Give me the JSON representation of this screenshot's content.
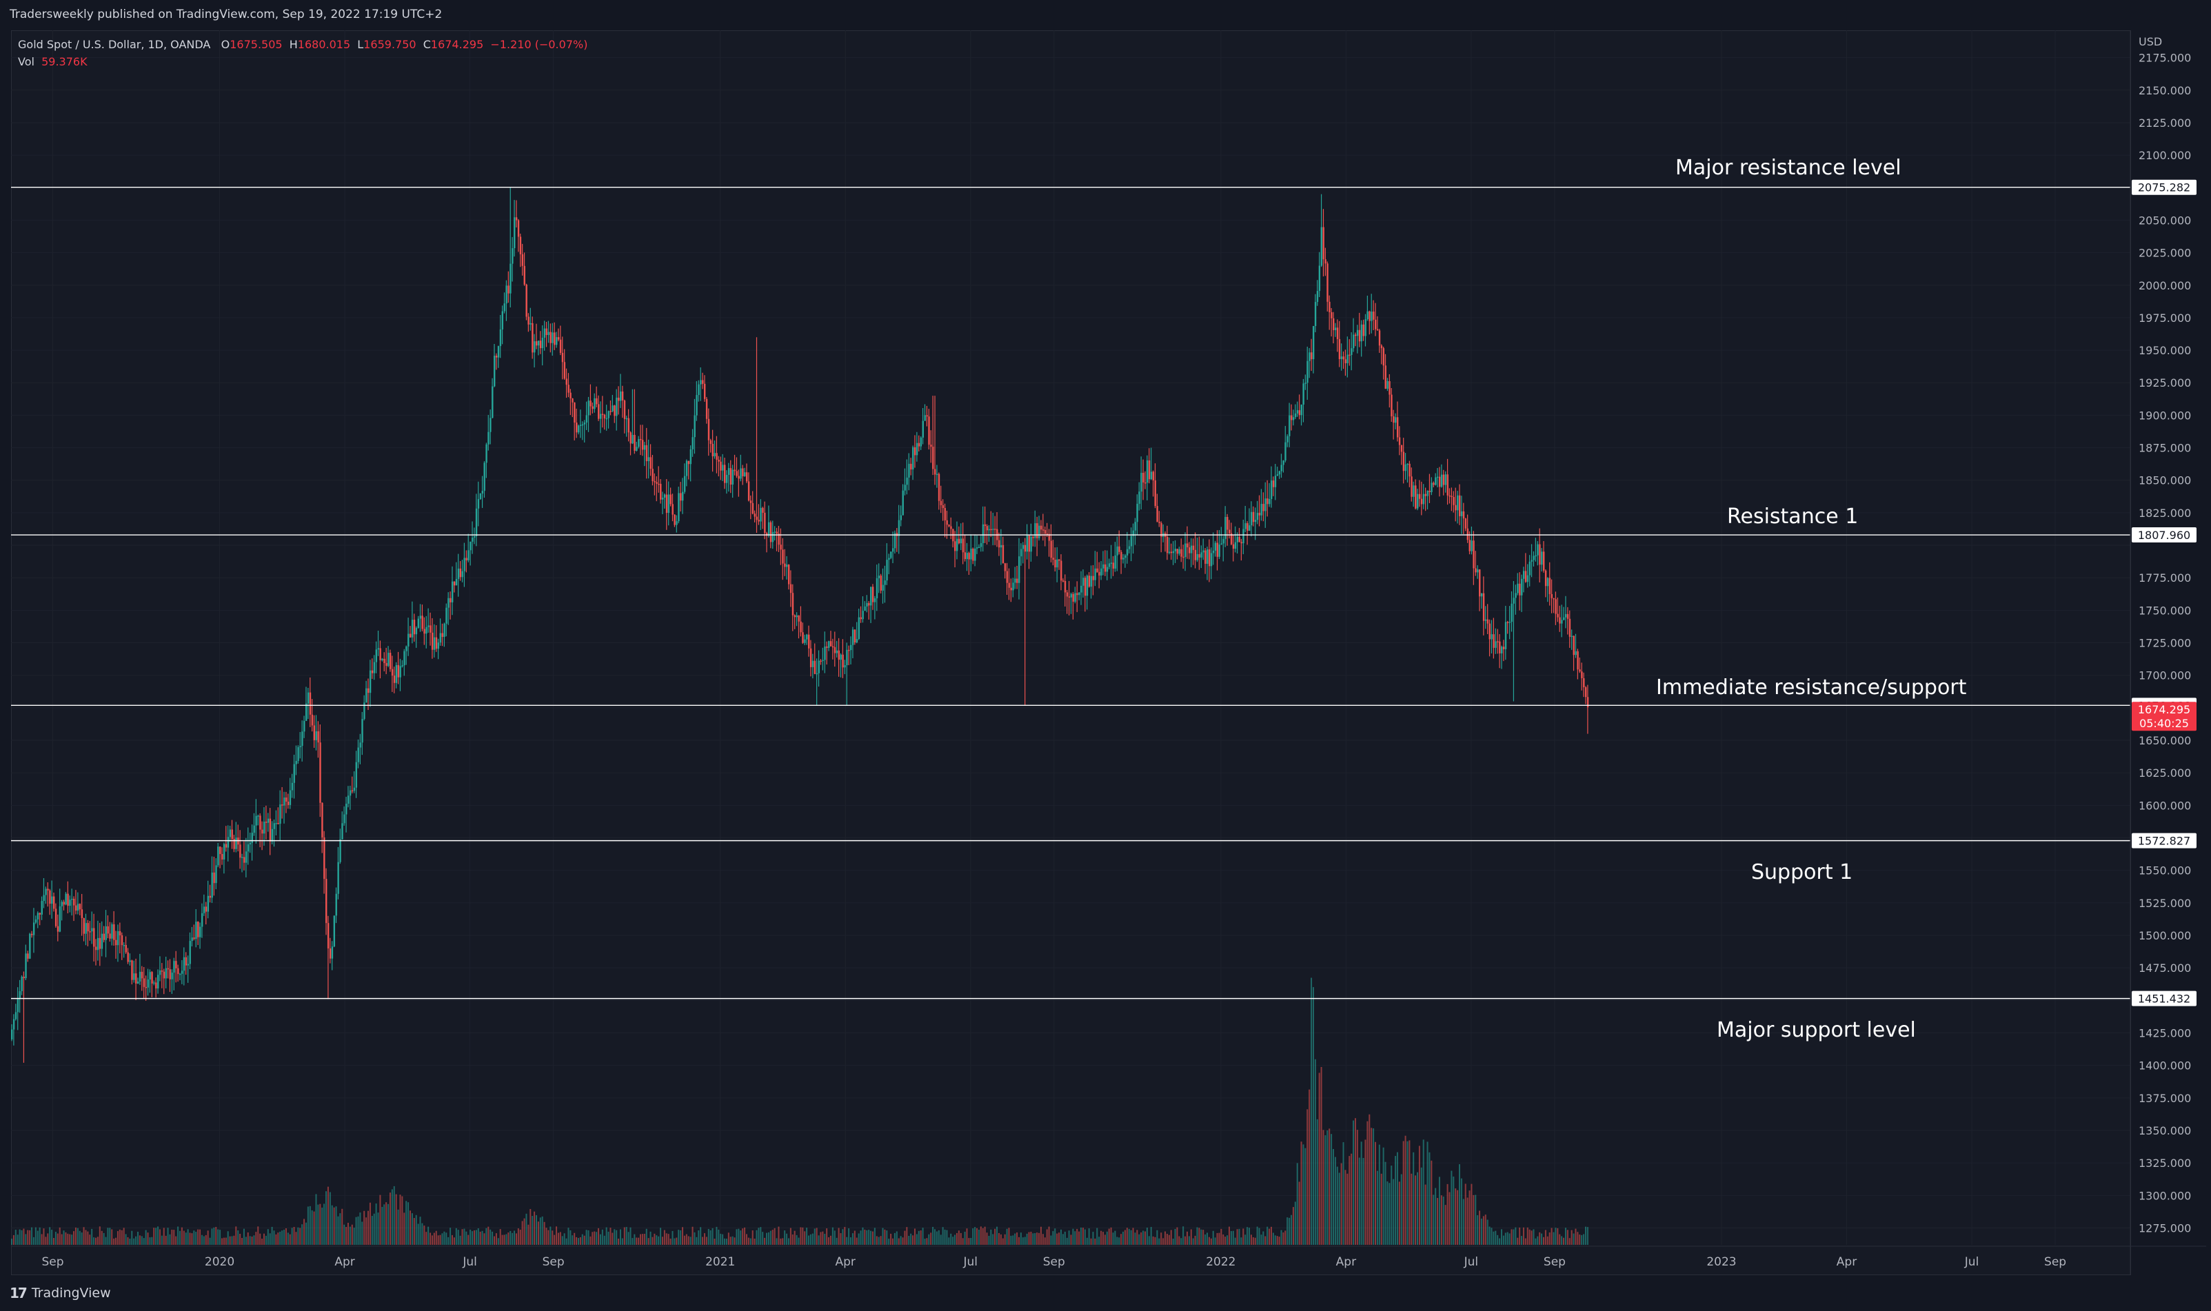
{
  "header": {
    "publish_note": "Tradersweekly published on TradingView.com, Sep 19, 2022 17:19 UTC+2"
  },
  "legend": {
    "symbol": "Gold Spot / U.S. Dollar, 1D, OANDA",
    "open_label": "O",
    "open": "1675.505",
    "high_label": "H",
    "high": "1680.015",
    "low_label": "L",
    "low": "1659.750",
    "close_label": "C",
    "close": "1674.295",
    "change": "−1.210 (−0.07%)",
    "vol_label": "Vol",
    "vol": "59.376K"
  },
  "footer": {
    "brand": "TradingView"
  },
  "colors": {
    "background": "#161a25",
    "up": "#26a69a",
    "down": "#ef5350",
    "level_line": "#ffffff",
    "price_tag": "#f23645"
  },
  "chart_data": {
    "type": "candlestick",
    "currency": "USD",
    "ylim": [
      1262,
      2196
    ],
    "y_ticks": [
      1275,
      1300,
      1325,
      1350,
      1375,
      1400,
      1425,
      1450,
      1475,
      1500,
      1525,
      1550,
      1575,
      1600,
      1625,
      1650,
      1675,
      1700,
      1725,
      1750,
      1775,
      1800,
      1825,
      1850,
      1875,
      1900,
      1925,
      1950,
      1975,
      2000,
      2025,
      2050,
      2075,
      2100,
      2125,
      2150,
      2175
    ],
    "y_tick_labels": [
      "1275.000",
      "1300.000",
      "1325.000",
      "1350.000",
      "1375.000",
      "1400.000",
      "1425.000",
      "1450.000",
      "1475.000",
      "1500.000",
      "1525.000",
      "1550.000",
      "1575.000",
      "1600.000",
      "1625.000",
      "1650.000",
      "1675.000",
      "1700.000",
      "1725.000",
      "1750.000",
      "1775.000",
      "1800.000",
      "1825.000",
      "1850.000",
      "1875.000",
      "1900.000",
      "1925.000",
      "1950.000",
      "1975.000",
      "2000.000",
      "2025.000",
      "2050.000",
      "2075.000",
      "2100.000",
      "2125.000",
      "2150.000",
      "2175.000"
    ],
    "x_ticks": [
      {
        "label": "Sep",
        "m": 1
      },
      {
        "label": "2020",
        "m": 5
      },
      {
        "label": "Apr",
        "m": 8
      },
      {
        "label": "Jul",
        "m": 11
      },
      {
        "label": "Sep",
        "m": 13
      },
      {
        "label": "2021",
        "m": 17
      },
      {
        "label": "Apr",
        "m": 20
      },
      {
        "label": "Jul",
        "m": 23
      },
      {
        "label": "Sep",
        "m": 25
      },
      {
        "label": "2022",
        "m": 29
      },
      {
        "label": "Apr",
        "m": 32
      },
      {
        "label": "Jul",
        "m": 35
      },
      {
        "label": "Sep",
        "m": 37
      },
      {
        "label": "2023",
        "m": 41
      },
      {
        "label": "Apr",
        "m": 44
      },
      {
        "label": "Jul",
        "m": 47
      },
      {
        "label": "Sep",
        "m": 49
      }
    ],
    "x_range_months": [
      0.0,
      50.8
    ],
    "price_path": [
      [
        0.0,
        1420
      ],
      [
        0.45,
        1500
      ],
      [
        0.8,
        1535
      ],
      [
        1.1,
        1510
      ],
      [
        1.4,
        1535
      ],
      [
        1.7,
        1510
      ],
      [
        2.0,
        1495
      ],
      [
        2.4,
        1505
      ],
      [
        2.9,
        1470
      ],
      [
        3.3,
        1465
      ],
      [
        3.8,
        1475
      ],
      [
        4.2,
        1480
      ],
      [
        4.6,
        1520
      ],
      [
        4.95,
        1560
      ],
      [
        5.2,
        1575
      ],
      [
        5.6,
        1560
      ],
      [
        5.9,
        1590
      ],
      [
        6.2,
        1580
      ],
      [
        6.6,
        1605
      ],
      [
        6.9,
        1640
      ],
      [
        7.1,
        1680
      ],
      [
        7.35,
        1640
      ],
      [
        7.5,
        1530
      ],
      [
        7.65,
        1470
      ],
      [
        7.9,
        1590
      ],
      [
        8.2,
        1620
      ],
      [
        8.5,
        1690
      ],
      [
        8.8,
        1720
      ],
      [
        9.2,
        1700
      ],
      [
        9.5,
        1730
      ],
      [
        9.8,
        1745
      ],
      [
        10.2,
        1720
      ],
      [
        10.6,
        1770
      ],
      [
        11.0,
        1800
      ],
      [
        11.3,
        1845
      ],
      [
        11.6,
        1950
      ],
      [
        11.9,
        2000
      ],
      [
        12.1,
        2060
      ],
      [
        12.3,
        1990
      ],
      [
        12.5,
        1950
      ],
      [
        12.8,
        1965
      ],
      [
        13.2,
        1945
      ],
      [
        13.5,
        1890
      ],
      [
        13.9,
        1910
      ],
      [
        14.2,
        1900
      ],
      [
        14.6,
        1910
      ],
      [
        14.9,
        1880
      ],
      [
        15.2,
        1870
      ],
      [
        15.6,
        1840
      ],
      [
        15.9,
        1820
      ],
      [
        16.3,
        1880
      ],
      [
        16.5,
        1930
      ],
      [
        16.8,
        1870
      ],
      [
        17.2,
        1850
      ],
      [
        17.5,
        1855
      ],
      [
        17.8,
        1830
      ],
      [
        18.2,
        1810
      ],
      [
        18.5,
        1790
      ],
      [
        18.8,
        1740
      ],
      [
        19.1,
        1720
      ],
      [
        19.3,
        1700
      ],
      [
        19.6,
        1730
      ],
      [
        19.9,
        1710
      ],
      [
        20.2,
        1730
      ],
      [
        20.5,
        1760
      ],
      [
        20.8,
        1770
      ],
      [
        21.1,
        1790
      ],
      [
        21.4,
        1840
      ],
      [
        21.7,
        1880
      ],
      [
        21.9,
        1900
      ],
      [
        22.1,
        1860
      ],
      [
        22.4,
        1810
      ],
      [
        22.7,
        1800
      ],
      [
        23.0,
        1790
      ],
      [
        23.3,
        1810
      ],
      [
        23.6,
        1815
      ],
      [
        23.9,
        1760
      ],
      [
        24.2,
        1790
      ],
      [
        24.6,
        1815
      ],
      [
        25.0,
        1790
      ],
      [
        25.4,
        1760
      ],
      [
        25.8,
        1770
      ],
      [
        26.2,
        1785
      ],
      [
        26.6,
        1795
      ],
      [
        26.9,
        1805
      ],
      [
        27.1,
        1855
      ],
      [
        27.3,
        1860
      ],
      [
        27.5,
        1815
      ],
      [
        27.8,
        1790
      ],
      [
        28.2,
        1800
      ],
      [
        28.5,
        1795
      ],
      [
        28.8,
        1790
      ],
      [
        29.1,
        1815
      ],
      [
        29.4,
        1800
      ],
      [
        29.8,
        1825
      ],
      [
        30.1,
        1835
      ],
      [
        30.4,
        1860
      ],
      [
        30.6,
        1895
      ],
      [
        30.9,
        1910
      ],
      [
        31.2,
        1960
      ],
      [
        31.4,
        2040
      ],
      [
        31.6,
        1975
      ],
      [
        31.9,
        1940
      ],
      [
        32.1,
        1950
      ],
      [
        32.4,
        1965
      ],
      [
        32.6,
        1985
      ],
      [
        32.8,
        1950
      ],
      [
        33.1,
        1900
      ],
      [
        33.4,
        1860
      ],
      [
        33.7,
        1830
      ],
      [
        34.0,
        1850
      ],
      [
        34.3,
        1855
      ],
      [
        34.6,
        1835
      ],
      [
        34.9,
        1810
      ],
      [
        35.1,
        1780
      ],
      [
        35.4,
        1730
      ],
      [
        35.7,
        1720
      ],
      [
        36.0,
        1760
      ],
      [
        36.3,
        1780
      ],
      [
        36.6,
        1795
      ],
      [
        36.9,
        1760
      ],
      [
        37.3,
        1735
      ],
      [
        37.6,
        1700
      ],
      [
        37.8,
        1675
      ]
    ],
    "wick_spikes": [
      {
        "m": 11.95,
        "hi": 2075
      },
      {
        "m": 31.4,
        "hi": 2070
      },
      {
        "m": 7.6,
        "lo": 1451
      },
      {
        "m": 0.3,
        "lo": 1402
      },
      {
        "m": 17.85,
        "hi": 1960
      },
      {
        "m": 14.9,
        "hi": 1920
      },
      {
        "m": 22.1,
        "hi": 1915
      },
      {
        "m": 27.3,
        "hi": 1875
      },
      {
        "m": 19.3,
        "lo": 1677
      },
      {
        "m": 20.0,
        "lo": 1677
      },
      {
        "m": 24.3,
        "lo": 1677
      },
      {
        "m": 36.0,
        "lo": 1680
      },
      {
        "m": 37.8,
        "lo": 1655
      }
    ],
    "volume": {
      "max": 100,
      "baseline": 4,
      "bursts": [
        {
          "m": 7.5,
          "peak": 22,
          "w": 0.6
        },
        {
          "m": 9.0,
          "peak": 20,
          "w": 1.0
        },
        {
          "m": 12.5,
          "peak": 12,
          "w": 0.5
        },
        {
          "m": 31.2,
          "peak": 100,
          "w": 0.15
        },
        {
          "m": 31.3,
          "peak": 60,
          "w": 0.6
        },
        {
          "m": 32.3,
          "peak": 45,
          "w": 1.2
        },
        {
          "m": 33.6,
          "peak": 40,
          "w": 0.9
        },
        {
          "m": 34.7,
          "peak": 27,
          "w": 0.7
        }
      ]
    },
    "levels": [
      {
        "name": "Major resistance level",
        "price": 2075.282,
        "tag": "2075.282"
      },
      {
        "name": "Resistance 1",
        "price": 1807.96,
        "tag": "1807.960"
      },
      {
        "name": "Immediate resistance/support",
        "price": 1676.866,
        "tag": "1676.866"
      },
      {
        "name": "Support 1",
        "price": 1572.827,
        "tag": "1572.827"
      },
      {
        "name": "Major support level",
        "price": 1451.432,
        "tag": "1451.432"
      }
    ],
    "last_price": {
      "value": 1674.295,
      "label": "1674.295",
      "countdown": "05:40:25"
    }
  }
}
